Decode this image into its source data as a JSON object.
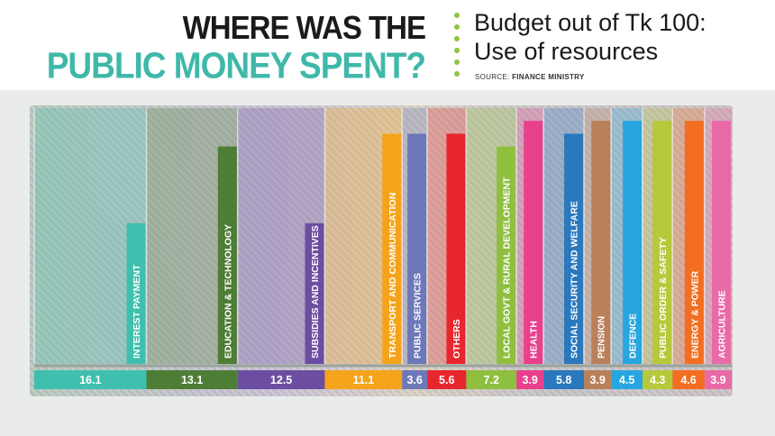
{
  "header": {
    "title_line1": "WHERE WAS THE",
    "title_line2": "PUBLIC MONEY SPENT?",
    "subtitle_line1": "Budget out of Tk 100:",
    "subtitle_line2": "Use of resources",
    "source_prefix": "SOURCE: ",
    "source_name": "FINANCE MINISTRY"
  },
  "colors": {
    "title_accent": "#3fb8a9",
    "dots": "#8cc63f",
    "baseline": "#9aa29c"
  },
  "chart_data": {
    "type": "bar",
    "title": "Budget out of Tk 100: Use of resources",
    "orientation": "horizontal-strip",
    "unit": "Tk out of 100",
    "categories": [
      "INTEREST PAYMENT",
      "EDUCATION & TECHNOLOGY",
      "SUBSIDIES AND INCENTIVES",
      "TRANSPORT AND COMMUNICATION",
      "PUBLIC SERVICES",
      "OTHERS",
      "LOCAL GOVT & RURAL DEVELOPMENT",
      "HEALTH",
      "SOCIAL SECURITY AND WELFARE",
      "PENSION",
      "DEFENCE",
      "PUBLIC ORDER & SAFETY",
      "ENERGY  & POWER",
      "AGRICULTURE"
    ],
    "values": [
      16.1,
      13.1,
      12.5,
      11.1,
      3.6,
      5.6,
      7.2,
      3.9,
      5.8,
      3.9,
      4.5,
      4.3,
      4.6,
      3.9
    ],
    "value_labels": [
      "16.1",
      "13.1",
      "12.5",
      "11.1",
      "3.6",
      "5.6",
      "7.2",
      "3.9",
      "5.8",
      "3.9",
      "4.5",
      "4.3",
      "4.6",
      "3.9"
    ],
    "colors": [
      "#3fbfad",
      "#4e7d36",
      "#6b4ea1",
      "#f5a31a",
      "#6d78b9",
      "#e8262d",
      "#8fbf3f",
      "#e8408c",
      "#2a78be",
      "#b9805a",
      "#27a6df",
      "#b5c93a",
      "#f36e21",
      "#e96aa6"
    ],
    "label_strip_fill": [
      0.55,
      0.85,
      0.55,
      0.9,
      0.9,
      0.9,
      0.85,
      0.95,
      0.9,
      0.95,
      0.95,
      0.95,
      0.95,
      0.95
    ]
  }
}
